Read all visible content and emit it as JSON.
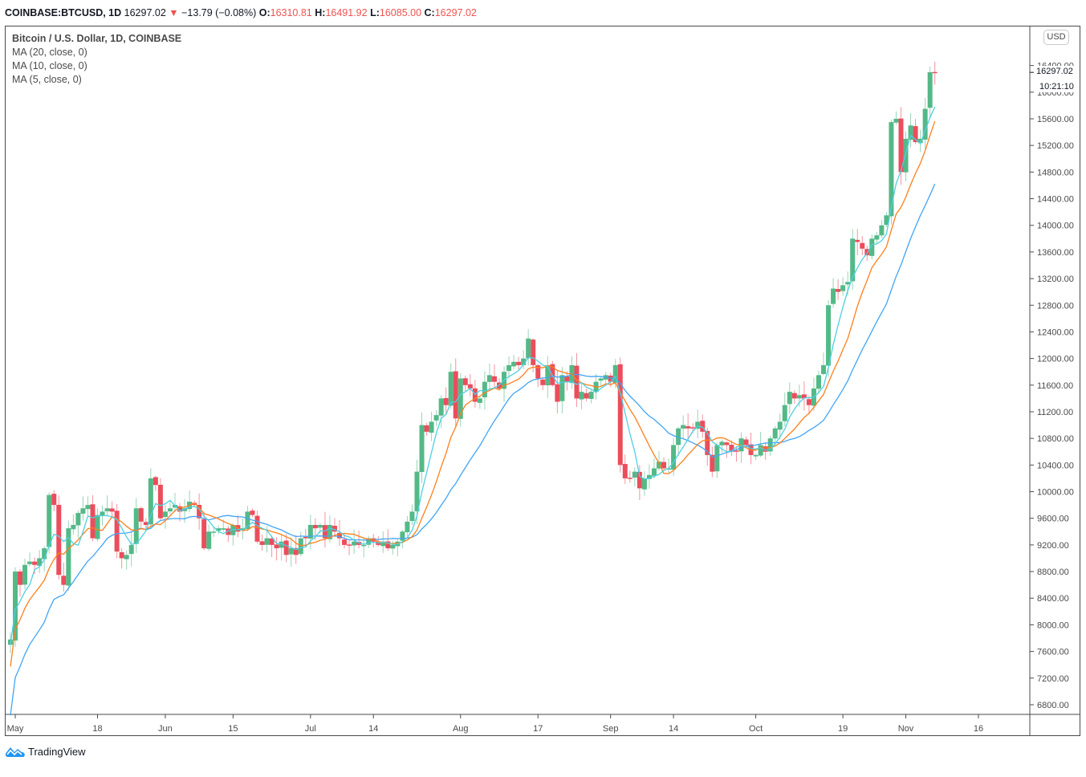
{
  "header": {
    "symbol": "COINBASE:BTCUSD, 1D",
    "last": "16297.02",
    "change": "−13.79 (−0.08%)",
    "o_label": "O:",
    "o": "16310.81",
    "h_label": "H:",
    "h": "16491.92",
    "l_label": "L:",
    "l": "16085.00",
    "c_label": "C:",
    "c": "16297.02",
    "down_arrow": "▼"
  },
  "legend": {
    "title": "Bitcoin / U.S. Dollar, 1D, COINBASE",
    "ma20": "MA (20, close, 0)",
    "ma10": "MA (10, close, 0)",
    "ma5": "MA (5, close, 0)"
  },
  "price_axis": {
    "currency": "USD",
    "last_price": "16297.02",
    "countdown": "10:21:10"
  },
  "branding": {
    "name": "TradingView"
  },
  "colors": {
    "up": "#53b987",
    "down": "#eb4d5c",
    "ma5": "#4dd0e1",
    "ma10": "#ff7f1c",
    "ma20": "#42a5f5",
    "axis": "#4a4a4a"
  },
  "chart_data": {
    "type": "candlestick",
    "title": "Bitcoin / U.S. Dollar, 1D, COINBASE",
    "xlabel": "",
    "ylabel": "USD",
    "ylim": [
      6600,
      16600
    ],
    "yticks": [
      6800,
      7200,
      7600,
      8000,
      8400,
      8800,
      9200,
      9600,
      10000,
      10400,
      10800,
      11200,
      11600,
      12000,
      12400,
      12800,
      13200,
      13600,
      14000,
      14400,
      14800,
      15200,
      15600,
      16000,
      16400
    ],
    "xticks": [
      {
        "label": "May",
        "day": 0
      },
      {
        "label": "18",
        "day": 17
      },
      {
        "label": "Jun",
        "day": 31
      },
      {
        "label": "15",
        "day": 45
      },
      {
        "label": "Jul",
        "day": 61
      },
      {
        "label": "14",
        "day": 74
      },
      {
        "label": "Aug",
        "day": 92
      },
      {
        "label": "17",
        "day": 108
      },
      {
        "label": "Sep",
        "day": 123
      },
      {
        "label": "14",
        "day": 136
      },
      {
        "label": "Oct",
        "day": 153
      },
      {
        "label": "19",
        "day": 171
      },
      {
        "label": "Nov",
        "day": 184
      },
      {
        "label": "16",
        "day": 199
      }
    ],
    "legend": [
      "MA (20, close, 0)",
      "MA (10, close, 0)",
      "MA (5, close, 0)"
    ],
    "start_day": -1,
    "closes": [
      7780,
      8800,
      8600,
      8900,
      8950,
      8900,
      9000,
      9150,
      9950,
      9800,
      8750,
      8600,
      9450,
      9500,
      9680,
      9750,
      9800,
      9300,
      9650,
      9700,
      9750,
      9700,
      9100,
      9000,
      9050,
      9200,
      9750,
      9550,
      9500,
      10200,
      10100,
      9600,
      9700,
      9750,
      9800,
      9700,
      9750,
      9850,
      9800,
      9600,
      9150,
      9400,
      9400,
      9450,
      9450,
      9350,
      9500,
      9400,
      9450,
      9700,
      9650,
      9250,
      9200,
      9300,
      9200,
      9150,
      9250,
      9050,
      9150,
      9050,
      9300,
      9300,
      9500,
      9450,
      9500,
      9300,
      9500,
      9400,
      9300,
      9200,
      9200,
      9250,
      9200,
      9200,
      9300,
      9250,
      9200,
      9250,
      9150,
      9200,
      9250,
      9400,
      9550,
      9700,
      10300,
      11000,
      10900,
      11050,
      11150,
      11400,
      11300,
      11800,
      11100,
      11700,
      11600,
      11550,
      11350,
      11400,
      11650,
      11750,
      11650,
      11550,
      11800,
      11900,
      11950,
      11900,
      12000,
      12300,
      11900,
      11700,
      11600,
      11900,
      11600,
      11350,
      11750,
      11650,
      11900,
      11400,
      11500,
      11400,
      11500,
      11650,
      11700,
      11750,
      11650,
      11900,
      10400,
      10200,
      10200,
      10300,
      10050,
      10200,
      10250,
      10350,
      10450,
      10350,
      10350,
      10700,
      10950,
      11000,
      10950,
      10950,
      11050,
      10900,
      10550,
      10300,
      10700,
      10750,
      10700,
      10600,
      10600,
      10800,
      10700,
      10550,
      10550,
      10700,
      10600,
      10800,
      10950,
      11050,
      11300,
      11500,
      11400,
      11450,
      11400,
      11300,
      11550,
      11750,
      11900,
      12800,
      13050,
      13000,
      13100,
      13150,
      13800,
      13750,
      13650,
      13550,
      13800,
      13850,
      14000,
      14150,
      15550,
      15600,
      14800,
      15300,
      15500,
      15250,
      15300,
      15750,
      16300,
      16297
    ],
    "ma_note": "MA lines computed from closes: 5 (cyan), 10 (orange), 20 (blue)"
  }
}
